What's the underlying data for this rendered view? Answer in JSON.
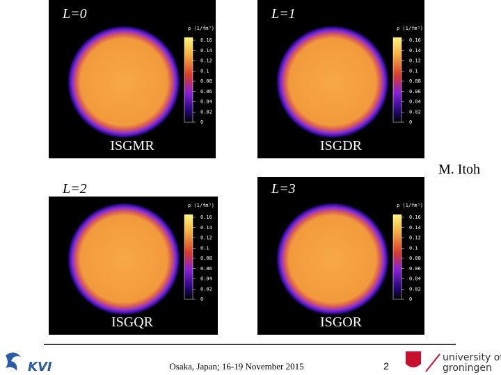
{
  "panels": [
    {
      "label": "L=0",
      "mode": "ISGMR"
    },
    {
      "label": "L=1",
      "mode": "ISGDR"
    },
    {
      "label": "L=2",
      "mode": "ISGQR"
    },
    {
      "label": "L=3",
      "mode": "ISGOR"
    }
  ],
  "colorbar": {
    "title": "ρ (1/fm³)",
    "ticks": [
      "0.16",
      "0.14",
      "0.12",
      "0.1",
      "0.08",
      "0.06",
      "0.04",
      "0.02",
      "0"
    ]
  },
  "author": "M. Itoh",
  "footer": {
    "venue": "Osaka, Japan; 16-19 November 2015",
    "page": "2",
    "left_logo": "KVI",
    "right_logo": [
      "university of",
      "groningen"
    ]
  }
}
